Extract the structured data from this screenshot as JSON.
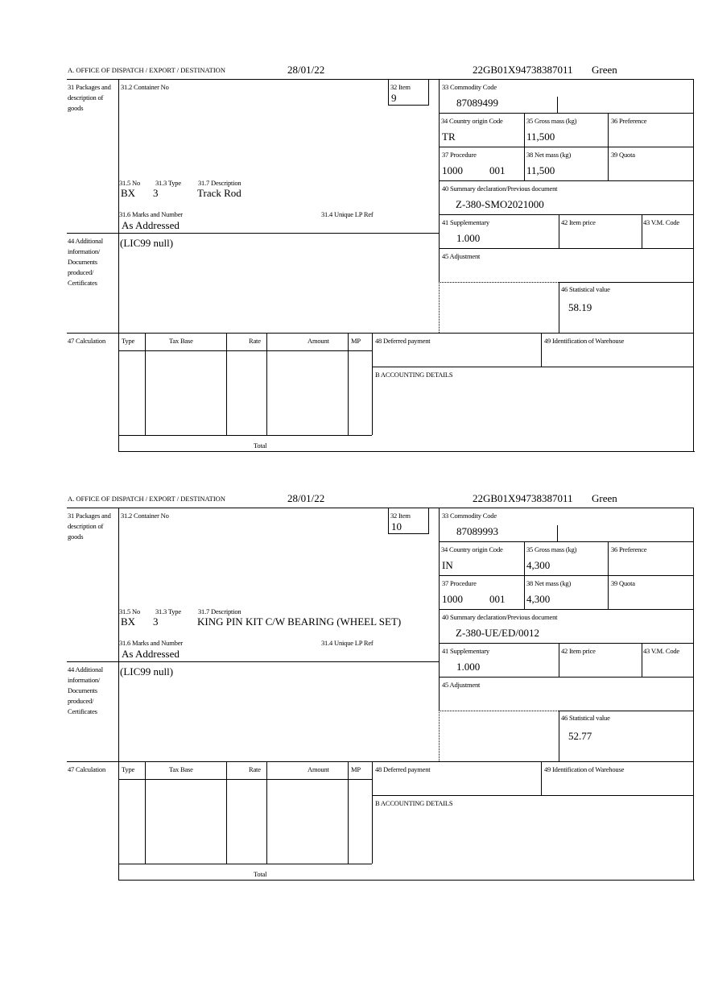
{
  "labels": {
    "office": "A. OFFICE OF DISPATCH / EXPORT / DESTINATION",
    "packages": "31 Packages and description of goods",
    "container_no": "31.2 Container No",
    "item": "32 Item",
    "commodity_code": "33 Commodity Code",
    "country_origin": "34 Country origin Code",
    "gross_mass": "35 Gross mass (kg)",
    "preference": "36 Preference",
    "procedure": "37 Procedure",
    "net_mass": "38 Net mass (kg)",
    "quota": "39 Quota",
    "summary_decl": "40 Summary declaration/Previous document",
    "no": "31.5 No",
    "type": "31.3 Type",
    "description": "31.7 Description",
    "marks": "31.6 Marks and Number",
    "unique_lp": "31.4 Unique LP Ref",
    "supplementary": "41 Supplementary",
    "item_price": "42 Item price",
    "vm_code": "43 V.M. Code",
    "additional_info": "44 Additional information/ Documents produced/ Certificates",
    "adjustment": "45 Adjustment",
    "statistical_value": "46 Statistical value",
    "calculation": "47 Calculation",
    "calc_type": "Type",
    "tax_base": "Tax Base",
    "rate": "Rate",
    "amount": "Amount",
    "mp": "MP",
    "deferred_payment": "48 Deferred payment",
    "warehouse_id": "49 Identification of Warehouse",
    "accounting": "B ACCOUNTING DETAILS",
    "total": "Total"
  },
  "items": [
    {
      "date": "28/01/22",
      "reference": "22GB01X94738387011",
      "route": "Green",
      "item_no": "9",
      "commodity_code": "87089499",
      "country_origin": "TR",
      "gross_mass": "11,500",
      "procedure": "1000",
      "procedure_additional": "001",
      "net_mass": "11,500",
      "summary_decl": "Z-380-SMO2021000",
      "package_kind": "BX",
      "package_count": "3",
      "description": "Track Rod",
      "marks": "As Addressed",
      "supplementary": "1.000",
      "additional_info": "(LIC99 null)",
      "statistical_value": "58.19"
    },
    {
      "date": "28/01/22",
      "reference": "22GB01X94738387011",
      "route": "Green",
      "item_no": "10",
      "commodity_code": "87089993",
      "country_origin": "IN",
      "gross_mass": "4,300",
      "procedure": "1000",
      "procedure_additional": "001",
      "net_mass": "4,300",
      "summary_decl": "Z-380-UE/ED/0012",
      "package_kind": "BX",
      "package_count": "3",
      "description": "KING PIN KIT C/W BEARING (WHEEL SET)",
      "marks": "As Addressed",
      "supplementary": "1.000",
      "additional_info": "(LIC99 null)",
      "statistical_value": "52.77"
    }
  ]
}
